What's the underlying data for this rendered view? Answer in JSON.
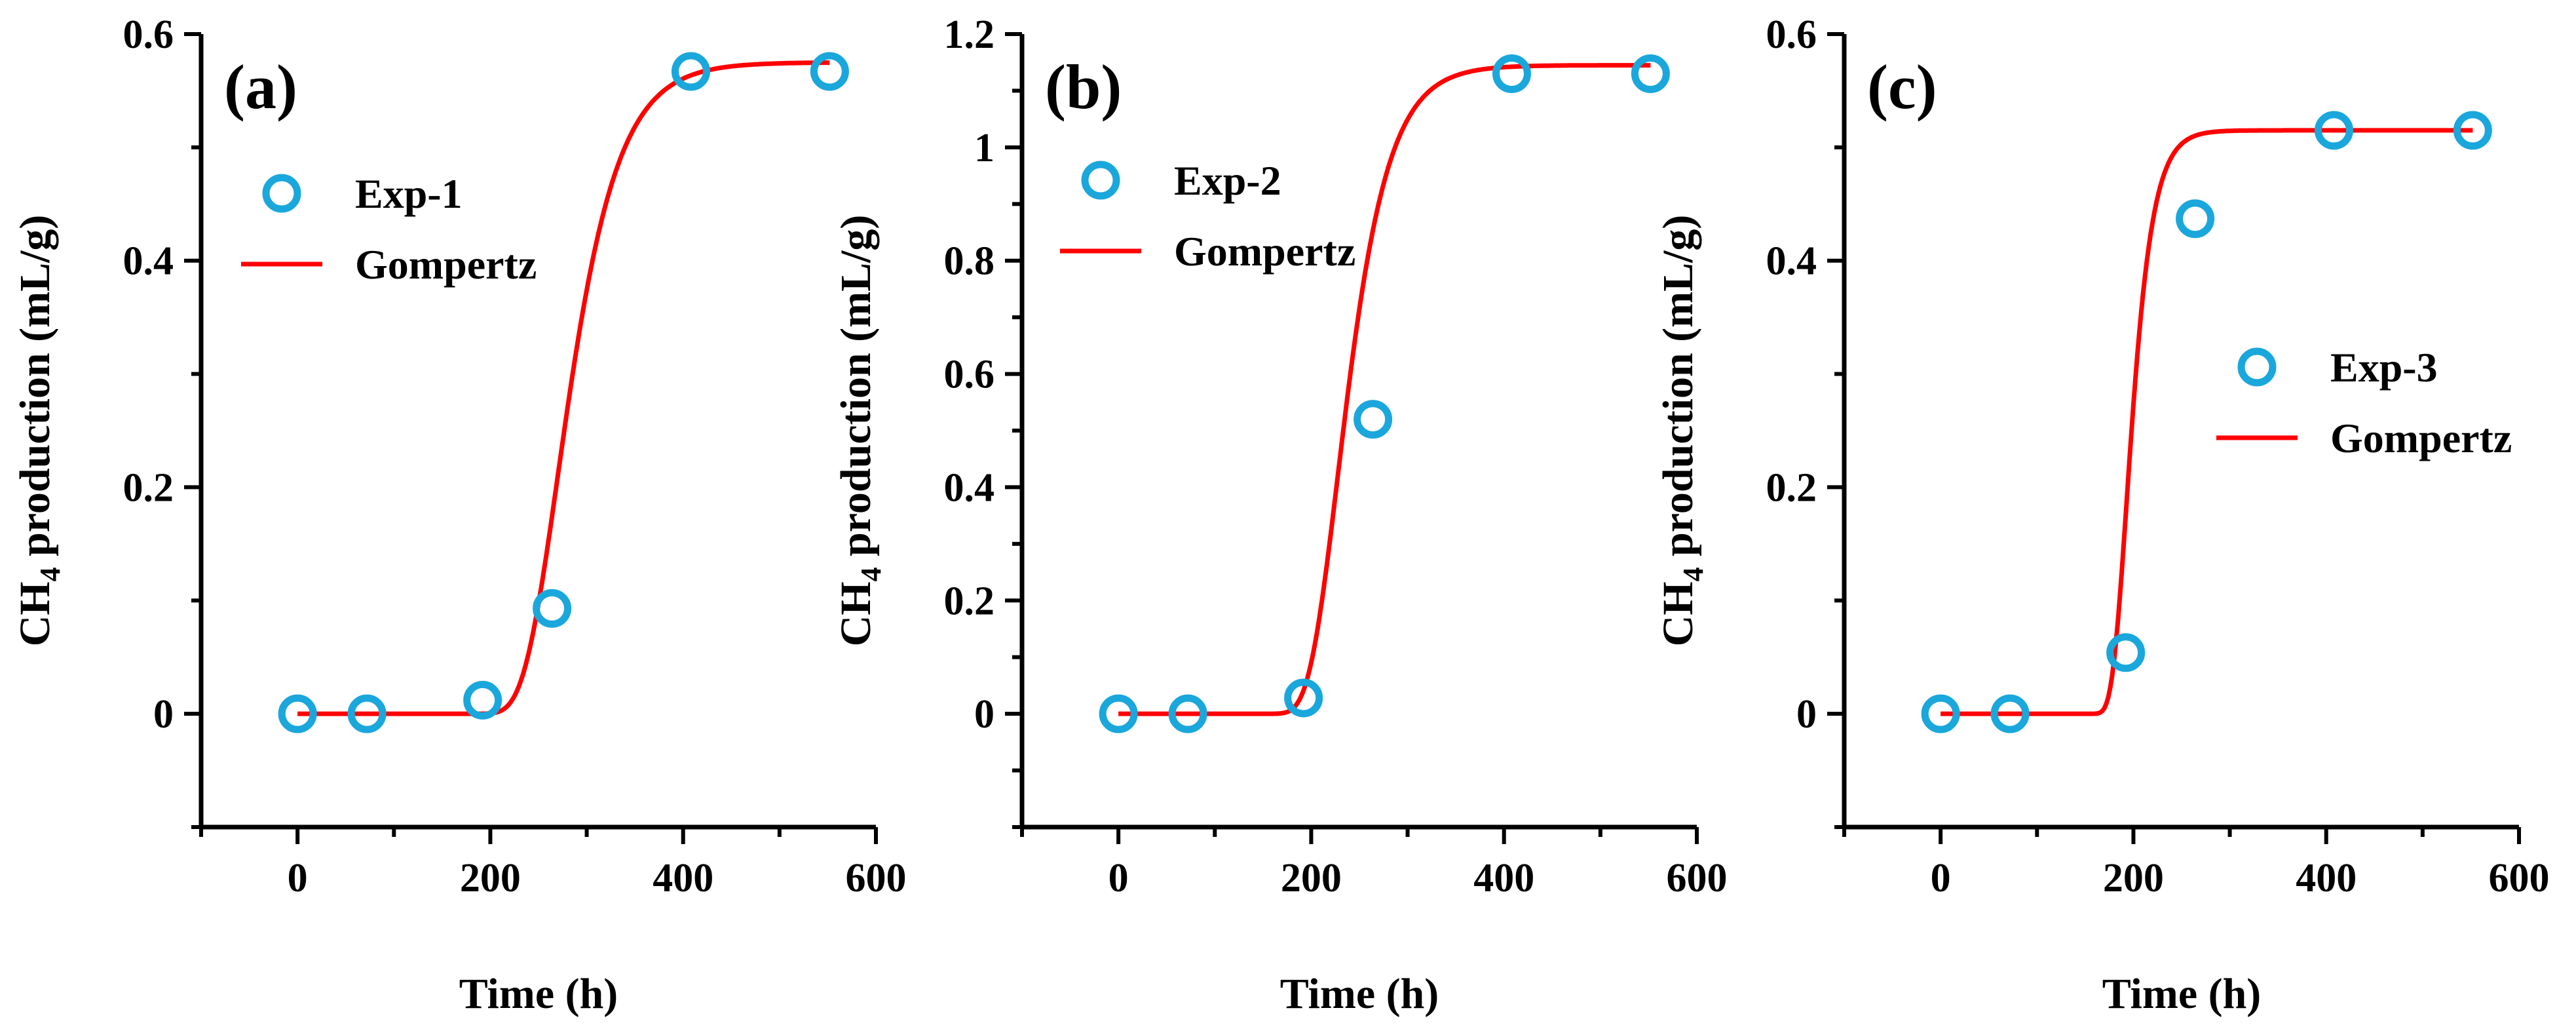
{
  "chart_data": [
    {
      "type": "scatter",
      "panel_label": "(a)",
      "xlabel": "Time (h)",
      "ylabel": {
        "main": "CH",
        "sub": "4",
        "rest": " production (mL/g)"
      },
      "xlim": [
        -100,
        600
      ],
      "ylim": [
        -0.1,
        0.6
      ],
      "xticks": [
        0,
        200,
        400,
        600
      ],
      "xtick_labels": [
        "0",
        "200",
        "400",
        "600"
      ],
      "yticks": [
        0,
        0.2,
        0.4,
        0.6
      ],
      "ytick_labels": [
        "0",
        "0.2",
        "0.4",
        "0.6"
      ],
      "legend": {
        "scatter": "Exp-1",
        "line": "Gompertz",
        "position": "upper-left"
      },
      "series": [
        {
          "name": "Exp-1",
          "kind": "scatter",
          "color": "#1aa7dc",
          "x": [
            0,
            72,
            192,
            264,
            408,
            552
          ],
          "y": [
            0,
            0,
            0.012,
            0.093,
            0.567,
            0.567
          ]
        },
        {
          "name": "Gompertz",
          "kind": "line",
          "color": "#ff0000",
          "x_range": [
            0,
            552
          ],
          "params": {
            "P": 0.575,
            "Rm": 0.006,
            "lambda": 235
          }
        }
      ]
    },
    {
      "type": "scatter",
      "panel_label": "(b)",
      "xlabel": "Time (h)",
      "ylabel": {
        "main": "CH",
        "sub": "4",
        "rest": " production (mL/g)"
      },
      "xlim": [
        -100,
        600
      ],
      "ylim": [
        -0.2,
        1.2
      ],
      "xticks": [
        0,
        200,
        400,
        600
      ],
      "xtick_labels": [
        "0",
        "200",
        "400",
        "600"
      ],
      "yticks": [
        0,
        0.2,
        0.4,
        0.6,
        0.8,
        1.0,
        1.2
      ],
      "ytick_labels": [
        "0",
        "0.2",
        "0.4",
        "0.6",
        "0.8",
        "1",
        "1.2"
      ],
      "legend": {
        "scatter": "Exp-2",
        "line": "Gompertz",
        "position": "upper-left"
      },
      "series": [
        {
          "name": "Exp-2",
          "kind": "scatter",
          "color": "#1aa7dc",
          "x": [
            0,
            72,
            192,
            264,
            408,
            552
          ],
          "y": [
            0,
            0,
            0.028,
            0.52,
            1.13,
            1.13
          ]
        },
        {
          "name": "Gompertz",
          "kind": "line",
          "color": "#ff0000",
          "x_range": [
            0,
            552
          ],
          "params": {
            "P": 1.145,
            "Rm": 0.0142,
            "lambda": 198
          }
        }
      ]
    },
    {
      "type": "scatter",
      "panel_label": "(c)",
      "xlabel": "Time (h)",
      "ylabel": {
        "main": "CH",
        "sub": "4",
        "rest": " production (mL/g)"
      },
      "xlim": [
        -100,
        600
      ],
      "ylim": [
        -0.1,
        0.6
      ],
      "xticks": [
        0,
        200,
        400,
        600
      ],
      "xtick_labels": [
        "0",
        "200",
        "400",
        "600"
      ],
      "yticks": [
        0,
        0.2,
        0.4,
        0.6
      ],
      "ytick_labels": [
        "0",
        "0.2",
        "0.4",
        "0.6"
      ],
      "legend": {
        "scatter": "Exp-3",
        "line": "Gompertz",
        "position": "center-right"
      },
      "series": [
        {
          "name": "Exp-3",
          "kind": "scatter",
          "color": "#1aa7dc",
          "x": [
            0,
            72,
            192,
            264,
            408,
            552
          ],
          "y": [
            0,
            0,
            0.054,
            0.437,
            0.515,
            0.515
          ]
        },
        {
          "name": "Gompertz",
          "kind": "line",
          "color": "#ff0000",
          "x_range": [
            0,
            552
          ],
          "params": {
            "P": 0.515,
            "Rm": 0.0125,
            "lambda": 178
          }
        }
      ]
    }
  ]
}
